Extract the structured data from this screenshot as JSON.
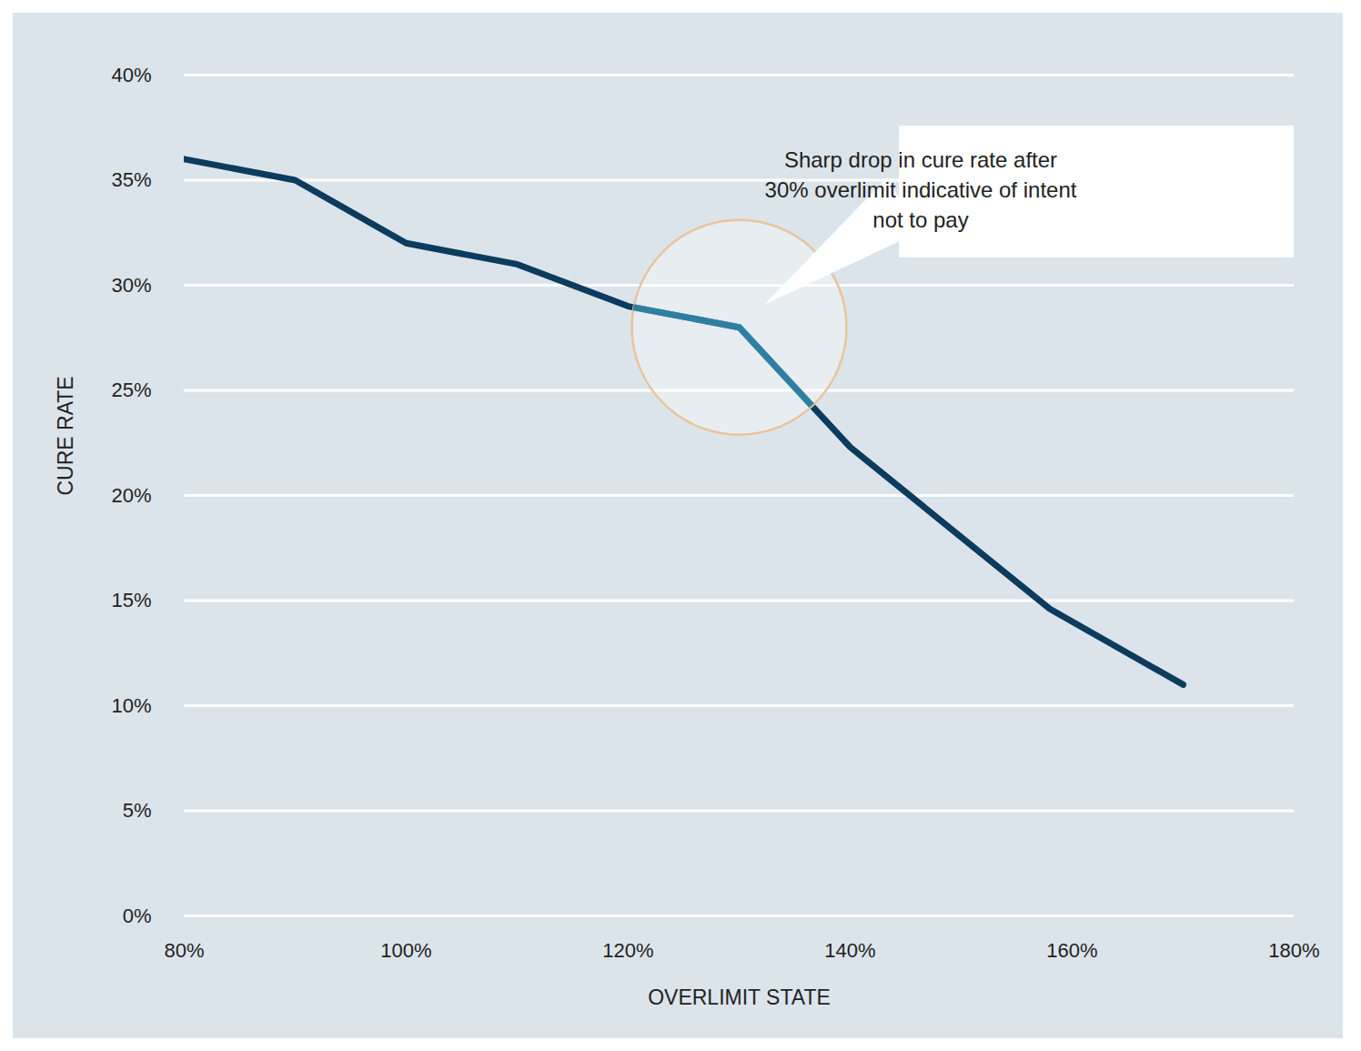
{
  "chart_data": {
    "type": "line",
    "x_label": "OVERLIMIT STATE",
    "y_label": "CURE RATE",
    "x": [
      80,
      90,
      100,
      110,
      120,
      130,
      140,
      158,
      170
    ],
    "values": [
      36,
      35,
      32,
      31,
      29,
      28,
      22.3,
      14.6,
      11
    ],
    "color": "#0b3c5d",
    "xlim": [
      80,
      180
    ],
    "xticks": [
      {
        "value": 80,
        "label": "80%"
      },
      {
        "value": 100,
        "label": "100%"
      },
      {
        "value": 120,
        "label": "120%"
      },
      {
        "value": 140,
        "label": "140%"
      },
      {
        "value": 160,
        "label": "160%"
      },
      {
        "value": 180,
        "label": "180%"
      }
    ],
    "ylim": [
      0,
      40
    ],
    "yticks": [
      {
        "value": 0,
        "label": "0%"
      },
      {
        "value": 5,
        "label": "5%"
      },
      {
        "value": 10,
        "label": "10%"
      },
      {
        "value": 15,
        "label": "15%"
      },
      {
        "value": 20,
        "label": "20%"
      },
      {
        "value": 25,
        "label": "25%"
      },
      {
        "value": 30,
        "label": "30%"
      },
      {
        "value": 35,
        "label": "35%"
      },
      {
        "value": 40,
        "label": "40%"
      }
    ],
    "grid": true,
    "annotation": {
      "lines": [
        "Sharp drop in cure rate after",
        "30% overlimit indicative of intent",
        "not to pay"
      ],
      "x": 130,
      "y": 28
    }
  }
}
